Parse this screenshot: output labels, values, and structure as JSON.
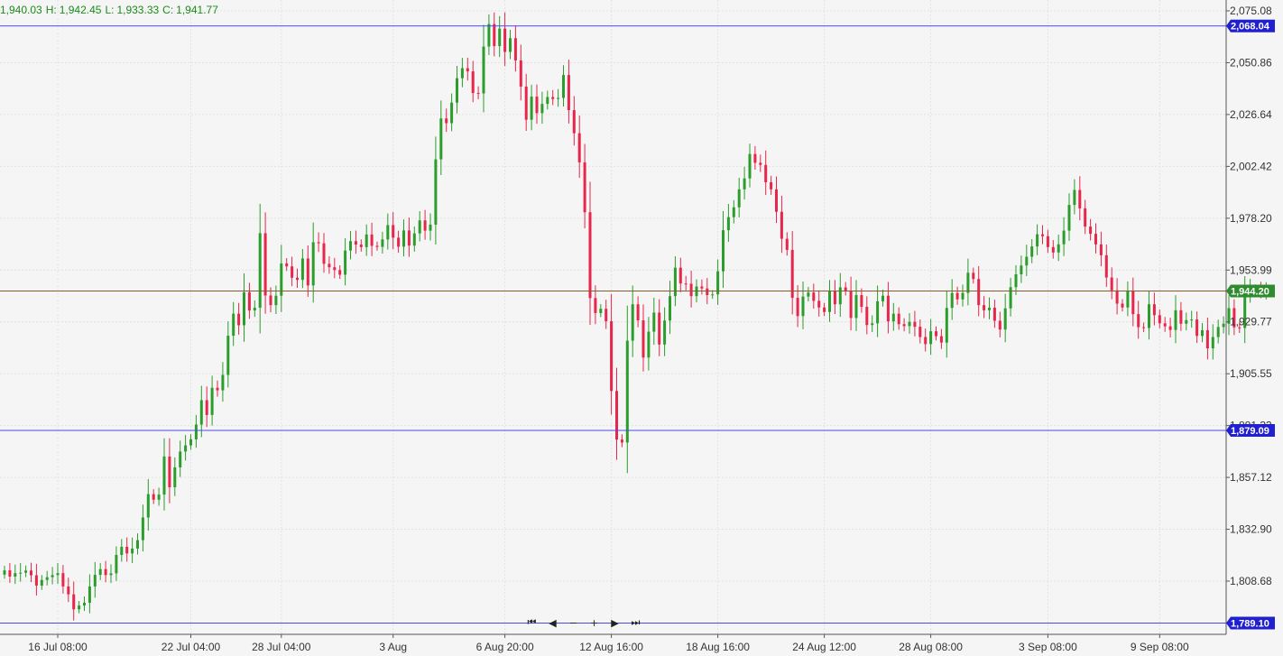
{
  "ohlc_readout": {
    "open": "1,940.03",
    "high_label": "H:",
    "high": "1,942.45",
    "low_label": "L:",
    "low": "1,933.33",
    "close_label": "C:",
    "close": "1,941.77"
  },
  "navigation": {
    "first_icon": "skip-to-start-icon",
    "back_icon": "scroll-left-icon",
    "zoom_out_icon": "zoom-out-icon",
    "zoom_in_icon": "zoom-in-icon",
    "forward_icon": "scroll-right-icon",
    "last_icon": "skip-to-end-icon",
    "first_glyph": "⏮",
    "back_glyph": "◀",
    "zoom_out_glyph": "−",
    "zoom_in_glyph": "+",
    "forward_glyph": "▶",
    "last_glyph": "⏭"
  },
  "colors": {
    "up": "#2a9d2a",
    "down": "#e8254a",
    "current_price_line": "#8b5a2b",
    "current_price_badge": "#2e8b2e",
    "hline": "#4a4ae8",
    "hline_badge": "#2020d0",
    "grid": "#e2e2e2",
    "axis_text": "#333333"
  },
  "chart_data": {
    "type": "candlestick",
    "y_tick_labels": [
      "2,075.08",
      "2,050.86",
      "2,026.64",
      "2,002.42",
      "1,978.20",
      "1,953.99",
      "1,929.77",
      "1,905.55",
      "1,881.33",
      "1,857.12",
      "1,832.90",
      "1,808.68"
    ],
    "y_ticks": [
      2075.08,
      2050.86,
      2026.64,
      2002.42,
      1978.2,
      1953.99,
      1929.77,
      1905.55,
      1881.33,
      1857.12,
      1832.9,
      1808.68
    ],
    "x_tick_labels": [
      "16 Jul 08:00",
      "22 Jul 04:00",
      "28 Jul 04:00",
      "3 Aug",
      "6 Aug 20:00",
      "12 Aug 16:00",
      "18 Aug 16:00",
      "24 Aug 12:00",
      "28 Aug 08:00",
      "3 Sep 08:00",
      "9 Sep 08:00"
    ],
    "x_tick_candle_index": [
      10,
      35,
      52,
      73,
      94,
      114,
      134,
      154,
      174,
      196,
      217
    ],
    "grid": true,
    "current_price": 1944.2,
    "current_price_label": "1,944.20",
    "horizontal_lines": [
      {
        "value": 2068.04,
        "label": "2,068.04"
      },
      {
        "value": 1879.09,
        "label": "1,879.09"
      },
      {
        "value": 1789.1,
        "label": "1,789.10"
      }
    ],
    "close": [
      1813.7,
      1810.8,
      1812.4,
      1812.6,
      1813.6,
      1811.4,
      1806.6,
      1809.2,
      1810.5,
      1811.5,
      1812.4,
      1806.2,
      1802.5,
      1795.5,
      1797.3,
      1798.6,
      1806.2,
      1811.6,
      1814.3,
      1811.5,
      1812.3,
      1820.9,
      1824.7,
      1821.6,
      1823.9,
      1827.8,
      1838.4,
      1849.3,
      1846.7,
      1849.1,
      1866.9,
      1852.5,
      1861.8,
      1869.2,
      1872.1,
      1874.9,
      1881.8,
      1893.2,
      1886.3,
      1899.0,
      1897.8,
      1905.0,
      1923.3,
      1933.6,
      1928.2,
      1943.6,
      1935.1,
      1936.4,
      1971.2,
      1942.1,
      1937.6,
      1942.0,
      1957.1,
      1955.7,
      1950.4,
      1949.4,
      1959.4,
      1946.8,
      1967.0,
      1966.5,
      1956.9,
      1955.3,
      1954.0,
      1951.8,
      1963.1,
      1967.5,
      1965.9,
      1964.7,
      1970.6,
      1965.3,
      1964.8,
      1968.3,
      1975.0,
      1969.1,
      1964.9,
      1972.5,
      1965.4,
      1971.1,
      1977.2,
      1972.4,
      1975.2,
      2005.7,
      2024.8,
      2022.6,
      2032.2,
      2043.6,
      2048.3,
      2046.8,
      2036.7,
      2036.5,
      2058.4,
      2068.9,
      2058.6,
      2066.8,
      2055.9,
      2062.3,
      2051.9,
      2039.7,
      2024.2,
      2035.0,
      2027.3,
      2031.6,
      2034.8,
      2033.9,
      2034.4,
      2045.1,
      2028.7,
      2017.9,
      2004.3,
      1981.0,
      1940.9,
      1933.9,
      1935.9,
      1930.1,
      1897.5,
      1874.8,
      1873.4,
      1921.0,
      1938.0,
      1930.5,
      1913.1,
      1925.2,
      1934.1,
      1919.2,
      1930.4,
      1941.8,
      1955.1,
      1947.7,
      1947.6,
      1941.8,
      1946.3,
      1945.4,
      1942.3,
      1942.6,
      1953.4,
      1972.6,
      1978.7,
      1983.3,
      1991.7,
      1996.8,
      2008.2,
      2004.1,
      2003.1,
      1995.0,
      1991.7,
      1981.2,
      1968.6,
      1963.4,
      1941.0,
      1932.5,
      1941.6,
      1943.5,
      1939.6,
      1936.5,
      1934.4,
      1944.1,
      1938.0,
      1945.9,
      1944.3,
      1931.6,
      1942.3,
      1936.8,
      1928.3,
      1929.1,
      1939.4,
      1942.0,
      1930.0,
      1933.6,
      1928.7,
      1927.8,
      1929.8,
      1927.5,
      1922.7,
      1919.4,
      1925.4,
      1923.1,
      1920.1,
      1936.3,
      1943.3,
      1940.3,
      1943.3,
      1952.7,
      1949.8,
      1937.6,
      1935.2,
      1936.4,
      1930.3,
      1926.2,
      1936.1,
      1946.0,
      1952.0,
      1956.1,
      1960.2,
      1965.0,
      1970.7,
      1969.8,
      1964.7,
      1962.2,
      1966.0,
      1972.4,
      1984.4,
      1991.4,
      1982.8,
      1974.3,
      1970.9,
      1966.0,
      1960.9,
      1950.5,
      1944.5,
      1938.3,
      1936.5,
      1944.0,
      1933.4,
      1927.3,
      1926.9,
      1938.0,
      1932.9,
      1929.1,
      1927.7,
      1926.0,
      1935.2,
      1928.9,
      1930.6,
      1930.9,
      1923.2,
      1925.9,
      1917.4,
      1922.7,
      1927.4,
      1928.9,
      1936.2,
      1927.2,
      1926.9,
      1943.1,
      1944.9,
      1945.1,
      1943.8,
      1944.2
    ]
  }
}
